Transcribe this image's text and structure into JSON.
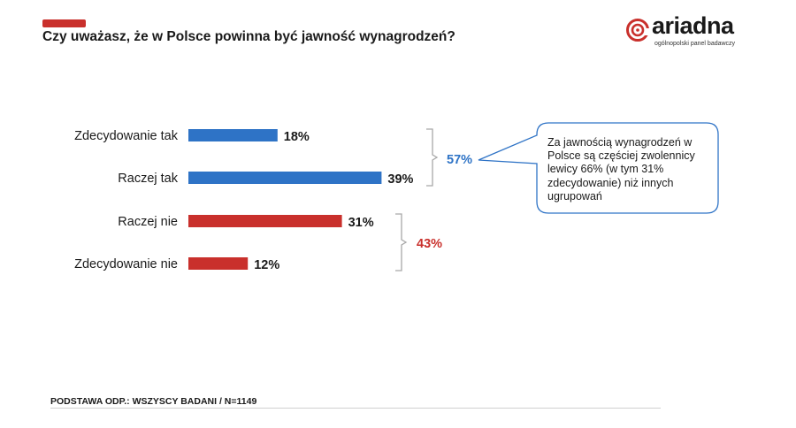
{
  "header": {
    "title": "Czy uważasz, że w Polsce powinna być jawność wynagrodzeń?",
    "logo": {
      "name": "ariadna",
      "tagline": "ogólnopolski panel badawczy",
      "icon": "ariadna-spiral-logo"
    }
  },
  "colors": {
    "accent_red": "#c9302c",
    "bar_blue": "#2e73c6",
    "bar_red": "#c9302c",
    "group_blue": "#2e73c6",
    "group_red": "#c9302c",
    "bracket_gray": "#a8a8a8",
    "callout_border": "#2e73c6"
  },
  "chart_data": {
    "type": "bar",
    "orientation": "horizontal",
    "categories": [
      "Zdecydowanie tak",
      "Raczej tak",
      "Raczej nie",
      "Zdecydowanie nie"
    ],
    "values": [
      18,
      39,
      31,
      12
    ],
    "value_labels": [
      "18%",
      "39%",
      "31%",
      "12%"
    ],
    "bar_colors": [
      "#2e73c6",
      "#2e73c6",
      "#c9302c",
      "#c9302c"
    ],
    "xlim": [
      0,
      40
    ],
    "groups": [
      {
        "label": "57%",
        "value": 57,
        "covers": [
          "Zdecydowanie tak",
          "Raczej tak"
        ],
        "color": "#2e73c6"
      },
      {
        "label": "43%",
        "value": 43,
        "covers": [
          "Raczej nie",
          "Zdecydowanie nie"
        ],
        "color": "#c9302c"
      }
    ],
    "annotation": "Za jawnością wynagrodzeń w Polsce są częściej zwolennicy lewicy 66% (w tym 31% zdecydowanie) niż innych ugrupowań"
  },
  "footer": {
    "base": "PODSTAWA ODP.: WSZYSCY BADANI / N=1149"
  }
}
